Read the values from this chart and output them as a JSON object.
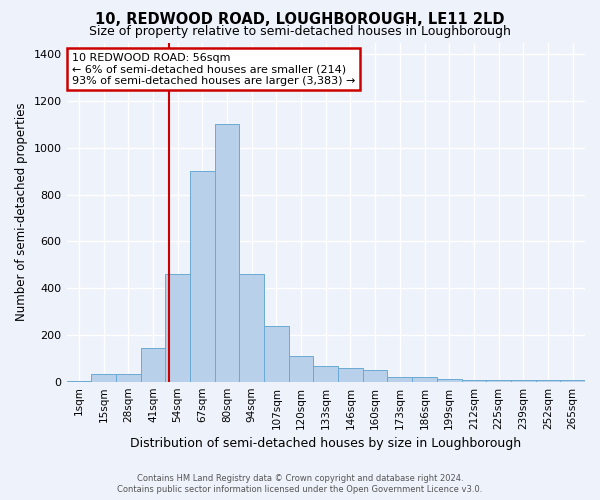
{
  "title": "10, REDWOOD ROAD, LOUGHBOROUGH, LE11 2LD",
  "subtitle": "Size of property relative to semi-detached houses in Loughborough",
  "xlabel": "Distribution of semi-detached houses by size in Loughborough",
  "ylabel": "Number of semi-detached properties",
  "footer_line1": "Contains HM Land Registry data © Crown copyright and database right 2024.",
  "footer_line2": "Contains public sector information licensed under the Open Government Licence v3.0.",
  "annotation_title": "10 REDWOOD ROAD: 56sqm",
  "annotation_line1": "← 6% of semi-detached houses are smaller (214)",
  "annotation_line2": "93% of semi-detached houses are larger (3,383) →",
  "bar_color": "#b8d0ea",
  "bar_edge_color": "#6aaad4",
  "highlight_line_color": "#cc0000",
  "highlight_bar_index": 4,
  "categories": [
    "1sqm",
    "15sqm",
    "28sqm",
    "41sqm",
    "54sqm",
    "67sqm",
    "80sqm",
    "94sqm",
    "107sqm",
    "120sqm",
    "133sqm",
    "146sqm",
    "160sqm",
    "173sqm",
    "186sqm",
    "199sqm",
    "212sqm",
    "225sqm",
    "239sqm",
    "252sqm",
    "265sqm"
  ],
  "values": [
    5,
    32,
    33,
    142,
    460,
    900,
    1100,
    460,
    240,
    110,
    68,
    58,
    48,
    20,
    18,
    10,
    8,
    8,
    8,
    8,
    8
  ],
  "ylim": [
    0,
    1450
  ],
  "yticks": [
    0,
    200,
    400,
    600,
    800,
    1000,
    1200,
    1400
  ],
  "background_color": "#eef2fa",
  "grid_color": "#ffffff",
  "annotation_box_bg": "#ffffff",
  "annotation_box_edge": "#cc0000"
}
